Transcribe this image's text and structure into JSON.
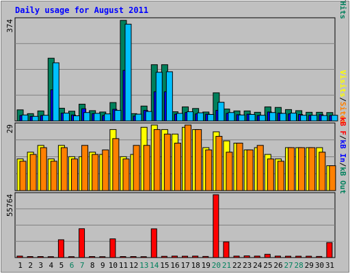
{
  "chart_data": [
    {
      "type": "bar",
      "title": "Daily usage for August 2011",
      "ylabel_parts": [
        "Pages",
        "/",
        "Files",
        "/",
        "Hits"
      ],
      "y_tick_label": "374",
      "ylim": [
        0,
        374
      ],
      "grid": true,
      "categories": [
        "1",
        "2",
        "3",
        "4",
        "5",
        "6",
        "7",
        "8",
        "9",
        "10",
        "11",
        "12",
        "13",
        "14",
        "15",
        "16",
        "17",
        "18",
        "19",
        "20",
        "21",
        "22",
        "23",
        "24",
        "25",
        "26",
        "27",
        "28",
        "29",
        "30",
        "31"
      ],
      "weekend_days": [
        "6",
        "7",
        "13",
        "14",
        "20",
        "21",
        "27",
        "28"
      ],
      "series": [
        {
          "name": "Hits",
          "values": [
            41,
            27,
            37,
            232,
            47,
            36,
            62,
            38,
            33,
            68,
            372,
            27,
            55,
            208,
            208,
            34,
            52,
            46,
            33,
            104,
            44,
            37,
            37,
            32,
            52,
            50,
            42,
            38,
            32,
            32,
            31
          ]
        },
        {
          "name": "Files",
          "values": [
            20,
            17,
            20,
            115,
            29,
            22,
            45,
            27,
            20,
            43,
            187,
            18,
            39,
            108,
            108,
            25,
            31,
            26,
            25,
            39,
            28,
            23,
            25,
            20,
            33,
            29,
            26,
            24,
            21,
            23,
            20
          ]
        },
        {
          "name": "Pages",
          "values": [
            22,
            17,
            21,
            215,
            29,
            19,
            31,
            28,
            26,
            39,
            358,
            25,
            35,
            180,
            182,
            28,
            34,
            30,
            24,
            69,
            31,
            22,
            24,
            21,
            31,
            28,
            29,
            21,
            21,
            20,
            21
          ]
        }
      ]
    },
    {
      "type": "bar",
      "ylabel_parts": [
        "Visits",
        "/",
        "Sites"
      ],
      "y_tick_label": "29",
      "ylim": [
        0,
        29
      ],
      "grid": true,
      "categories": [
        "1",
        "2",
        "3",
        "4",
        "5",
        "6",
        "7",
        "8",
        "9",
        "10",
        "11",
        "12",
        "13",
        "14",
        "15",
        "16",
        "17",
        "18",
        "19",
        "20",
        "21",
        "22",
        "23",
        "24",
        "25",
        "26",
        "27",
        "28",
        "29",
        "30",
        "31"
      ],
      "series": [
        {
          "name": "Visits",
          "values": [
            14,
            17,
            20,
            14,
            20,
            15,
            15,
            17,
            16,
            27,
            15,
            16,
            28,
            29,
            27,
            25,
            28,
            27,
            19,
            26,
            22,
            21,
            18,
            19,
            16,
            14,
            19,
            19,
            19,
            19,
            11
          ]
        },
        {
          "name": "Sites",
          "values": [
            13,
            16,
            19,
            13,
            19,
            14,
            20,
            16,
            18,
            23,
            14,
            20,
            20,
            27,
            25,
            21,
            29,
            27,
            18,
            24,
            17,
            21,
            18,
            20,
            14,
            13,
            19,
            19,
            19,
            17,
            11
          ]
        }
      ]
    },
    {
      "type": "bar",
      "ylabel_parts": [
        "kB F",
        "/",
        "kB In",
        "/",
        "kB Out"
      ],
      "y_tick_label": "55764",
      "ylim": [
        0,
        55764
      ],
      "grid": true,
      "categories": [
        "1",
        "2",
        "3",
        "4",
        "5",
        "6",
        "7",
        "8",
        "9",
        "10",
        "11",
        "12",
        "13",
        "14",
        "15",
        "16",
        "17",
        "18",
        "19",
        "20",
        "21",
        "22",
        "23",
        "24",
        "25",
        "26",
        "27",
        "28",
        "29",
        "30",
        "31"
      ],
      "series": [
        {
          "name": "kB F",
          "values": [
            1300,
            900,
            900,
            800,
            15800,
            800,
            25600,
            900,
            800,
            16600,
            900,
            900,
            800,
            25500,
            1100,
            1300,
            1200,
            1300,
            1000,
            55764,
            13900,
            1300,
            1500,
            1300,
            2900,
            1300,
            1200,
            1200,
            1200,
            1000,
            13300
          ]
        }
      ]
    }
  ],
  "colors": {
    "background": "#c0c0c0",
    "frame": "#808080",
    "title": "#0000ff",
    "axis_text": "#000000",
    "hits": "#00805c",
    "files": "#0000ff",
    "pages": "#00c0ff",
    "visits": "#ffff00",
    "sites": "#ff8000",
    "kbytes": "#ff0000",
    "kb_in": "#0000ff",
    "kb_out": "#00805c",
    "weekday_label": "#000000",
    "weekend_label": "#00805c"
  }
}
